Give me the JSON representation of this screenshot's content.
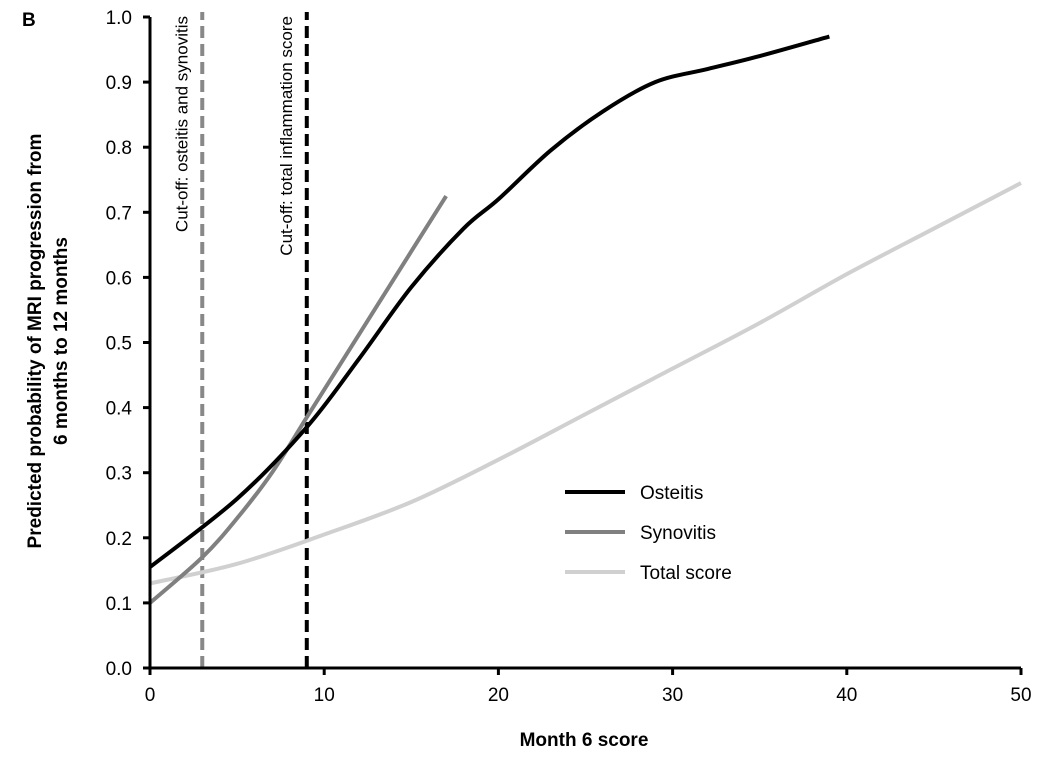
{
  "panel_label": "B",
  "chart_data": {
    "type": "line",
    "title": "",
    "xlabel": "Month 6 score",
    "ylabel_lines": [
      "Predicted probability of MRI progression from",
      "6 months to 12 months"
    ],
    "xlim": [
      0,
      50
    ],
    "ylim": [
      0,
      1.0
    ],
    "xticks": [
      0,
      10,
      20,
      30,
      40,
      50
    ],
    "xtick_labels": [
      "0",
      "10",
      "20",
      "30",
      "40",
      "50"
    ],
    "yticks": [
      0,
      0.1,
      0.2,
      0.3,
      0.4,
      0.5,
      0.6,
      0.7,
      0.8,
      0.9,
      1.0
    ],
    "ytick_labels": [
      "0.0",
      "0.1",
      "0.2",
      "0.3",
      "0.4",
      "0.5",
      "0.6",
      "0.7",
      "0.8",
      "0.9",
      "1.0"
    ],
    "grid": false,
    "legend_position": "lower-right",
    "series": [
      {
        "name": "Osteitis",
        "color": "#000000",
        "x": [
          0,
          5,
          9,
          12,
          15,
          18,
          20,
          23,
          26,
          29,
          32,
          35,
          39
        ],
        "y": [
          0.155,
          0.26,
          0.37,
          0.475,
          0.585,
          0.675,
          0.72,
          0.795,
          0.855,
          0.9,
          0.92,
          0.94,
          0.97
        ]
      },
      {
        "name": "Synovitis",
        "color": "#808080",
        "x": [
          0,
          3,
          5,
          7,
          9,
          11,
          13,
          15,
          17
        ],
        "y": [
          0.1,
          0.17,
          0.23,
          0.3,
          0.385,
          0.47,
          0.555,
          0.64,
          0.725
        ]
      },
      {
        "name": "Total score",
        "color": "#d0d0d0",
        "x": [
          0,
          5,
          10,
          15,
          20,
          25,
          30,
          35,
          40,
          45,
          50
        ],
        "y": [
          0.13,
          0.16,
          0.205,
          0.255,
          0.32,
          0.39,
          0.46,
          0.53,
          0.605,
          0.675,
          0.745
        ]
      }
    ],
    "reference_lines": [
      {
        "x": 3,
        "color": "#888888",
        "label": "Cut-off: osteitis and synovitis"
      },
      {
        "x": 9,
        "color": "#000000",
        "label": "Cut-off: total inflammation score"
      }
    ]
  }
}
